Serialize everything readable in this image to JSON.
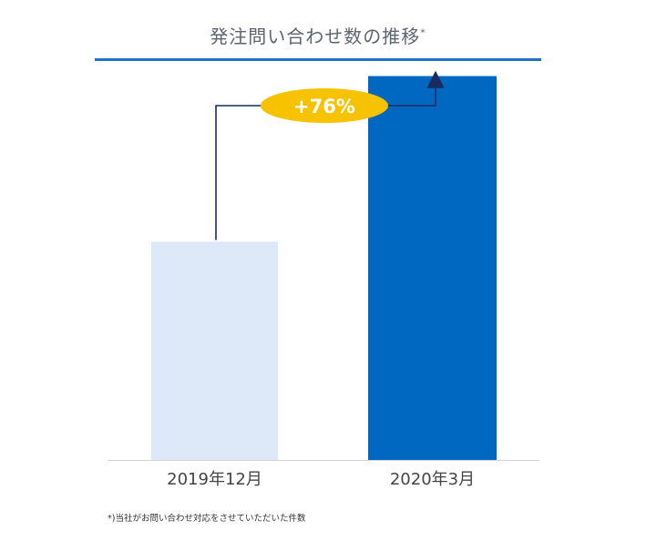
{
  "title": {
    "text": "発注問い合わせ数の推移",
    "marker": "*"
  },
  "footnote": "*)当社がお問い合わせ対応をさせていただいた件数",
  "colors": {
    "title_rule": "#1f74c4",
    "bar_previous": "#dde9f8",
    "bar_current": "#0068c1",
    "badge_fill": "#f7c200",
    "badge_text": "#ffffff",
    "connector": "#1a2b5f",
    "baseline": "#d3d3d3",
    "tick_text": "#444444"
  },
  "chart_data": {
    "type": "bar",
    "categories": [
      "2019年12月",
      "2020年3月"
    ],
    "values": [
      100,
      176
    ],
    "ylim": [
      0,
      190
    ],
    "title": "発注問い合わせ数の推移",
    "xlabel": "",
    "ylabel": "",
    "grid": false,
    "legend": "none",
    "annotation": {
      "text": "+76%",
      "from_category": "2019年12月",
      "to_category": "2020年3月"
    }
  }
}
